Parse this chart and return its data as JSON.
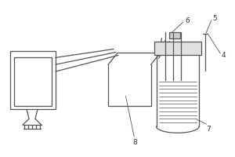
{
  "bg_color": "#ffffff",
  "line_color": "#555555",
  "line_width": 0.9,
  "label_color": "#333333",
  "label_fontsize": 6.5
}
